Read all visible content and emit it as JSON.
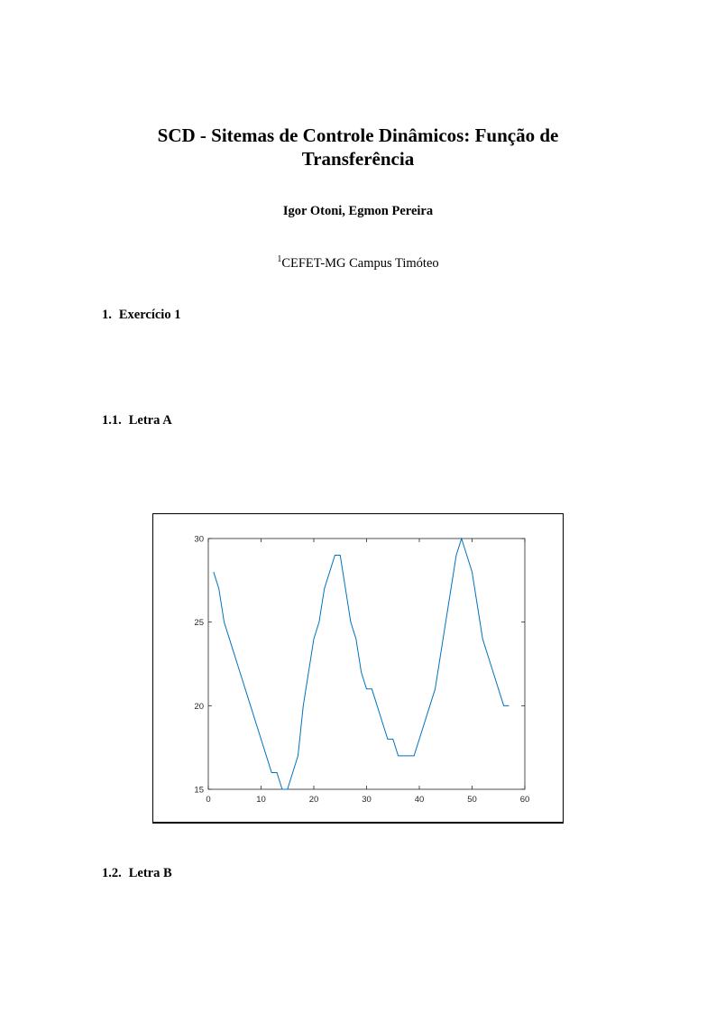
{
  "title": "SCD - Sitemas de Controle Dinâmicos: Função de Transferência",
  "authors": "Igor Otoni, Egmon Pereira",
  "affiliation": {
    "sup": "1",
    "text": "CEFET-MG Campus Timóteo"
  },
  "sections": [
    {
      "num": "1.",
      "title": "Exercício 1"
    },
    {
      "num": "1.1.",
      "title": "Letra A"
    },
    {
      "num": "1.2.",
      "title": "Letra B"
    }
  ],
  "chart_data": {
    "type": "line",
    "title": "",
    "xlabel": "",
    "ylabel": "",
    "xlim": [
      0,
      60
    ],
    "ylim": [
      15,
      30
    ],
    "xticks": [
      0,
      10,
      20,
      30,
      40,
      50,
      60
    ],
    "yticks": [
      15,
      20,
      25,
      30
    ],
    "grid": false,
    "color": "#0072BD",
    "x": [
      1,
      2,
      3,
      4,
      5,
      6,
      7,
      8,
      9,
      10,
      11,
      12,
      13,
      14,
      15,
      16,
      17,
      18,
      19,
      20,
      21,
      22,
      23,
      24,
      25,
      26,
      27,
      28,
      29,
      30,
      31,
      32,
      33,
      34,
      35,
      36,
      37,
      38,
      39,
      40,
      41,
      42,
      43,
      44,
      45,
      46,
      47,
      48,
      49,
      50,
      51,
      52,
      53,
      54,
      55,
      56,
      57
    ],
    "y": [
      28,
      27,
      25,
      24,
      23,
      22,
      21,
      20,
      19,
      18,
      17,
      16,
      16,
      15,
      15,
      16,
      17,
      20,
      22,
      24,
      25,
      27,
      28,
      29,
      29,
      27,
      25,
      24,
      22,
      21,
      21,
      20,
      19,
      18,
      18,
      17,
      17,
      17,
      17,
      18,
      19,
      20,
      21,
      23,
      25,
      27,
      29,
      30,
      29,
      28,
      26,
      24,
      23,
      22,
      21,
      20,
      20
    ]
  }
}
